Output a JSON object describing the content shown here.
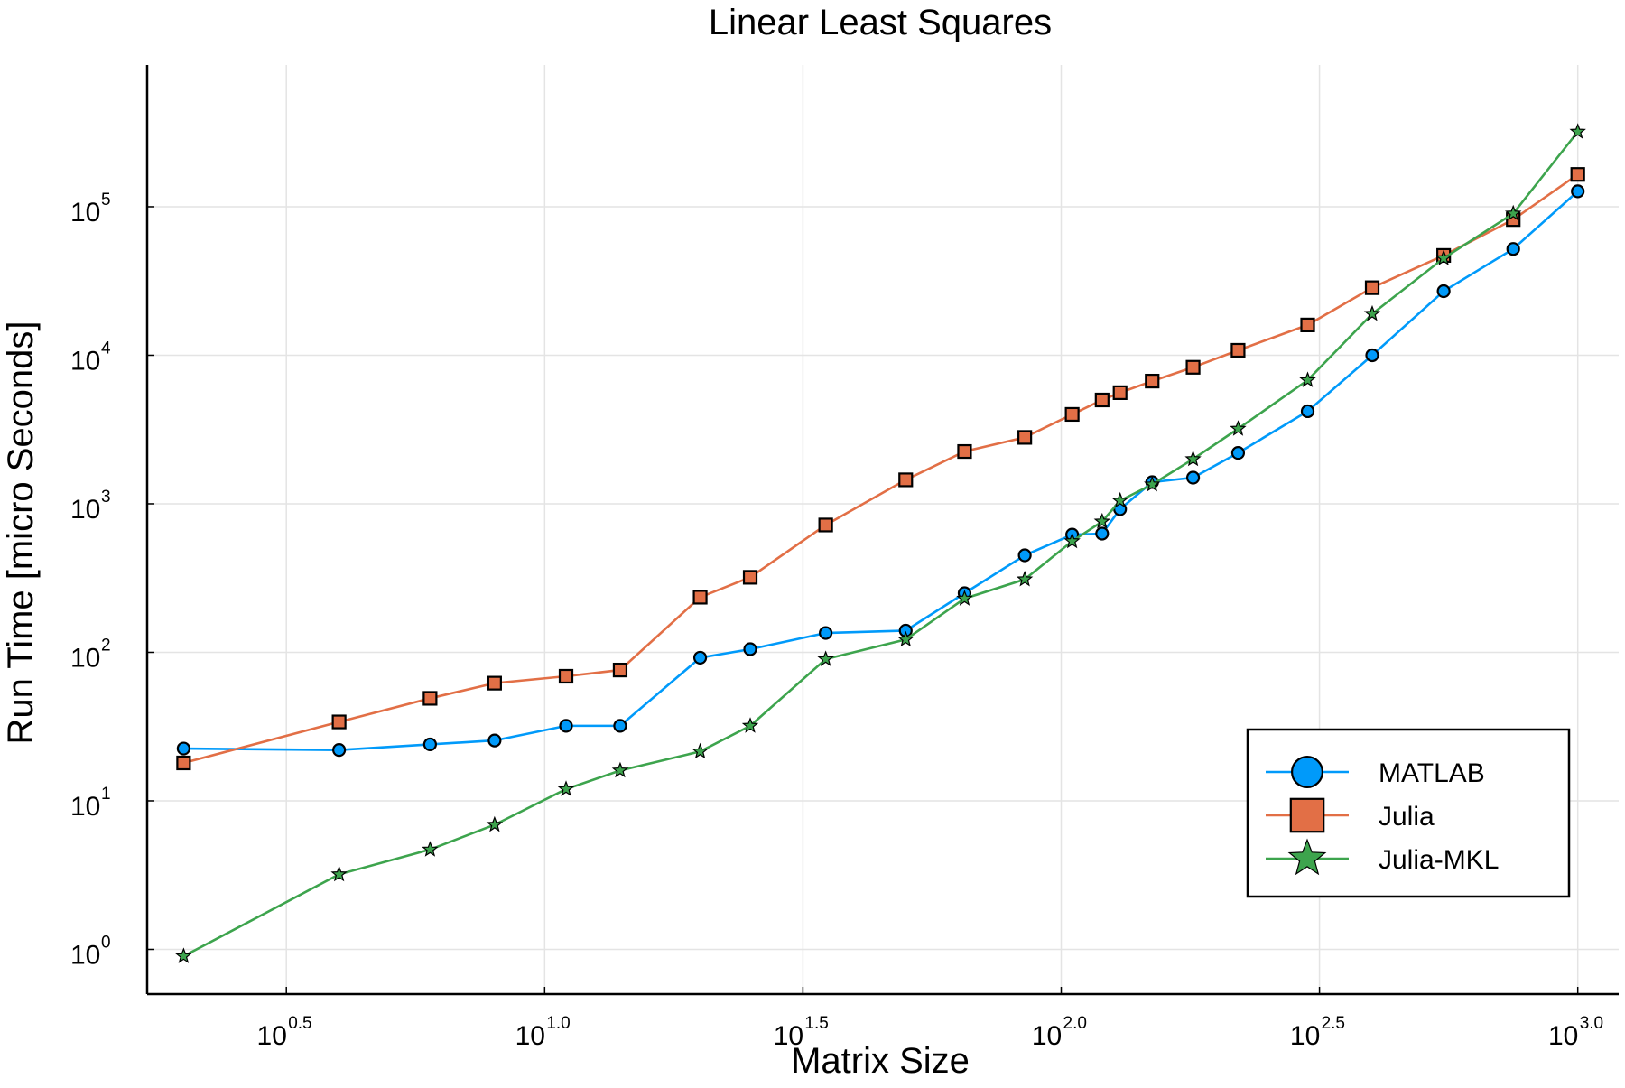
{
  "chart_data": {
    "type": "line",
    "title": "Linear Least Squares",
    "xlabel": "Matrix Size",
    "ylabel": "Run Time  [micro Seconds]",
    "xscale": "log10",
    "yscale": "log10",
    "xlim": [
      1.7,
      1200
    ],
    "ylim": [
      0.5,
      900000
    ],
    "grid": true,
    "legend_position": "bottom-right",
    "x_ticks": [
      {
        "base": "10",
        "exp": "0.5",
        "value": 3.162
      },
      {
        "base": "10",
        "exp": "1.0",
        "value": 10
      },
      {
        "base": "10",
        "exp": "1.5",
        "value": 31.62
      },
      {
        "base": "10",
        "exp": "2.0",
        "value": 100
      },
      {
        "base": "10",
        "exp": "2.5",
        "value": 316.2
      },
      {
        "base": "10",
        "exp": "3.0",
        "value": 1000
      }
    ],
    "y_ticks": [
      {
        "base": "10",
        "exp": "0",
        "value": 1
      },
      {
        "base": "10",
        "exp": "1",
        "value": 10
      },
      {
        "base": "10",
        "exp": "2",
        "value": 100
      },
      {
        "base": "10",
        "exp": "3",
        "value": 1000
      },
      {
        "base": "10",
        "exp": "4",
        "value": 10000
      },
      {
        "base": "10",
        "exp": "5",
        "value": 100000
      }
    ],
    "x": [
      2,
      4,
      6,
      8,
      11,
      14,
      20,
      25,
      35,
      50,
      65,
      85,
      105,
      120,
      130,
      150,
      180,
      220,
      300,
      400,
      550,
      750,
      1000
    ],
    "series": [
      {
        "name": "MATLAB",
        "color": "#009AFA",
        "marker": "circle",
        "values": [
          22.5,
          22,
          24,
          25.5,
          32,
          32,
          92,
          105,
          135,
          140,
          250,
          450,
          620,
          630,
          920,
          1400,
          1500,
          2200,
          4200,
          10000,
          27000,
          52000,
          127000
        ]
      },
      {
        "name": "Julia",
        "color": "#E26F46",
        "marker": "square",
        "values": [
          18,
          34,
          49,
          62,
          69,
          76,
          235,
          320,
          720,
          1450,
          2250,
          2800,
          4000,
          5000,
          5600,
          6700,
          8300,
          10800,
          16000,
          28500,
          47000,
          82000,
          165000
        ]
      },
      {
        "name": "Julia-MKL",
        "color": "#3DA44D",
        "marker": "star",
        "values": [
          0.9,
          3.2,
          4.7,
          6.9,
          12,
          16,
          21.5,
          32,
          90,
          122,
          230,
          310,
          560,
          760,
          1050,
          1350,
          2000,
          3200,
          6800,
          19000,
          45000,
          90000,
          320000
        ]
      }
    ]
  }
}
